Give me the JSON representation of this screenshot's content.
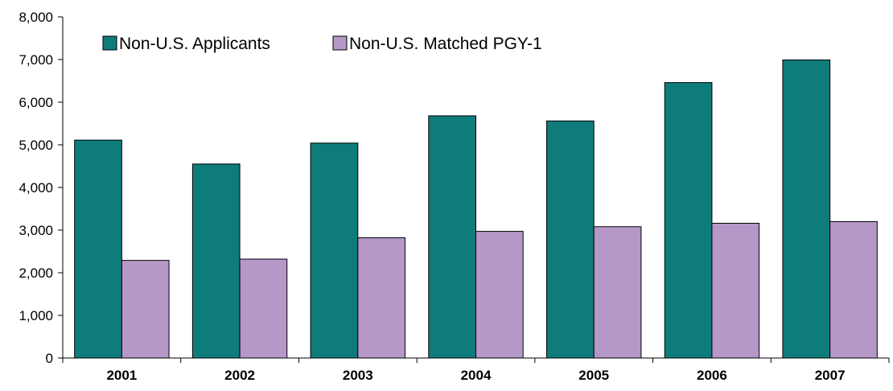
{
  "chart_data": {
    "type": "bar",
    "title": "",
    "xlabel": "",
    "ylabel": "",
    "categories": [
      "2001",
      "2002",
      "2003",
      "2004",
      "2005",
      "2006",
      "2007"
    ],
    "series": [
      {
        "name": "Non-U.S. Applicants",
        "color": "#0E7C7B",
        "values": [
          5110,
          4550,
          5040,
          5680,
          5560,
          6460,
          6990
        ]
      },
      {
        "name": "Non-U.S. Matched PGY-1",
        "color": "#B597C8",
        "values": [
          2290,
          2320,
          2820,
          2970,
          3080,
          3160,
          3200
        ]
      }
    ],
    "ylim": [
      0,
      8000
    ],
    "yticks": [
      0,
      1000,
      2000,
      3000,
      4000,
      5000,
      6000,
      7000,
      8000
    ],
    "ytick_labels": [
      "0",
      "1,000",
      "2,000",
      "3,000",
      "4,000",
      "5,000",
      "6,000",
      "7,000",
      "8,000"
    ],
    "grid": false,
    "legend_position": "top-left"
  }
}
